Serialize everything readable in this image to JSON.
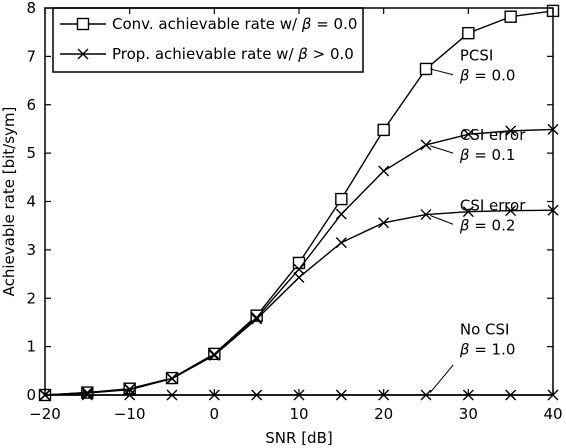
{
  "chart_data": {
    "type": "line",
    "xlabel": "SNR [dB]",
    "ylabel": "Achievable rate [bit/sym]",
    "xlim": [
      -20,
      40
    ],
    "ylim": [
      0,
      8
    ],
    "xticks": [
      -20,
      -10,
      0,
      10,
      20,
      30,
      40
    ],
    "xtick_labels": [
      "−20",
      "−10",
      "0",
      "10",
      "20",
      "30",
      "40"
    ],
    "yticks": [
      0,
      1,
      2,
      3,
      4,
      5,
      6,
      7,
      8
    ],
    "ytick_labels": [
      "0",
      "1",
      "2",
      "3",
      "4",
      "5",
      "6",
      "7",
      "8"
    ],
    "grid": false,
    "legend_position": "top-left",
    "legend": [
      {
        "marker": "square",
        "text_prefix": "Conv. achievable rate w/ ",
        "beta_relation": "= 0.0"
      },
      {
        "marker": "x",
        "text_prefix": "Prop. achievable rate w/ ",
        "beta_relation": "> 0.0"
      }
    ],
    "x": [
      -20,
      -15,
      -10,
      -5,
      0,
      5,
      10,
      15,
      20,
      25,
      30,
      35,
      40
    ],
    "series": [
      {
        "marker": "square",
        "values": [
          0.0,
          0.05,
          0.13,
          0.35,
          0.85,
          1.64,
          2.73,
          4.05,
          5.48,
          6.74,
          7.48,
          7.82,
          7.94
        ]
      },
      {
        "marker": "x",
        "values": [
          0.0,
          0.05,
          0.12,
          0.34,
          0.84,
          1.6,
          2.6,
          3.74,
          4.63,
          5.17,
          5.39,
          5.46,
          5.49
        ]
      },
      {
        "marker": "x",
        "values": [
          0.0,
          0.04,
          0.11,
          0.34,
          0.82,
          1.57,
          2.43,
          3.15,
          3.56,
          3.73,
          3.79,
          3.81,
          3.82
        ]
      },
      {
        "marker": "x",
        "values": [
          0.0,
          0.0,
          0.0,
          0.0,
          0.0,
          0.0,
          0.0,
          0.0,
          0.0,
          0.0,
          0.0,
          0.0,
          0.0
        ]
      }
    ],
    "annotations": [
      {
        "line1": "PCSI",
        "line2": "= 0.0",
        "at_x": 29.0,
        "at_y": 6.5,
        "pointer": [
          [
            28.2,
            6.62
          ],
          [
            25.5,
            6.74
          ]
        ]
      },
      {
        "line1": "CSI error",
        "line2": "= 0.1",
        "at_x": 29.0,
        "at_y": 4.86,
        "pointer": [
          [
            28.2,
            5.0
          ],
          [
            25.5,
            5.15
          ]
        ]
      },
      {
        "line1": "CSI error",
        "line2": "= 0.2",
        "at_x": 29.0,
        "at_y": 3.4,
        "pointer": [
          [
            28.2,
            3.53
          ],
          [
            25.5,
            3.71
          ]
        ]
      },
      {
        "line1": "No CSI",
        "line2": "= 1.0",
        "at_x": 29.0,
        "at_y": 0.84,
        "pointer": [
          [
            28.2,
            0.62
          ],
          [
            25.5,
            0.05
          ]
        ]
      }
    ]
  }
}
